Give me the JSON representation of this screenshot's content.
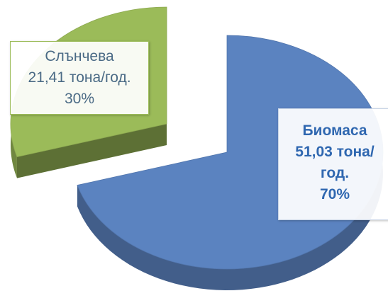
{
  "chart_data": {
    "type": "pie",
    "categories": [
      "Слънчева",
      "Биомаса"
    ],
    "values": [
      21.41,
      51.03
    ],
    "value_labels": [
      "21,41 тона/год.",
      "51,03 тона/год."
    ],
    "percentages": [
      30,
      70
    ],
    "percentage_labels": [
      "30%",
      "70%"
    ],
    "colors": [
      "#9bbb59",
      "#5b83c0"
    ]
  }
}
